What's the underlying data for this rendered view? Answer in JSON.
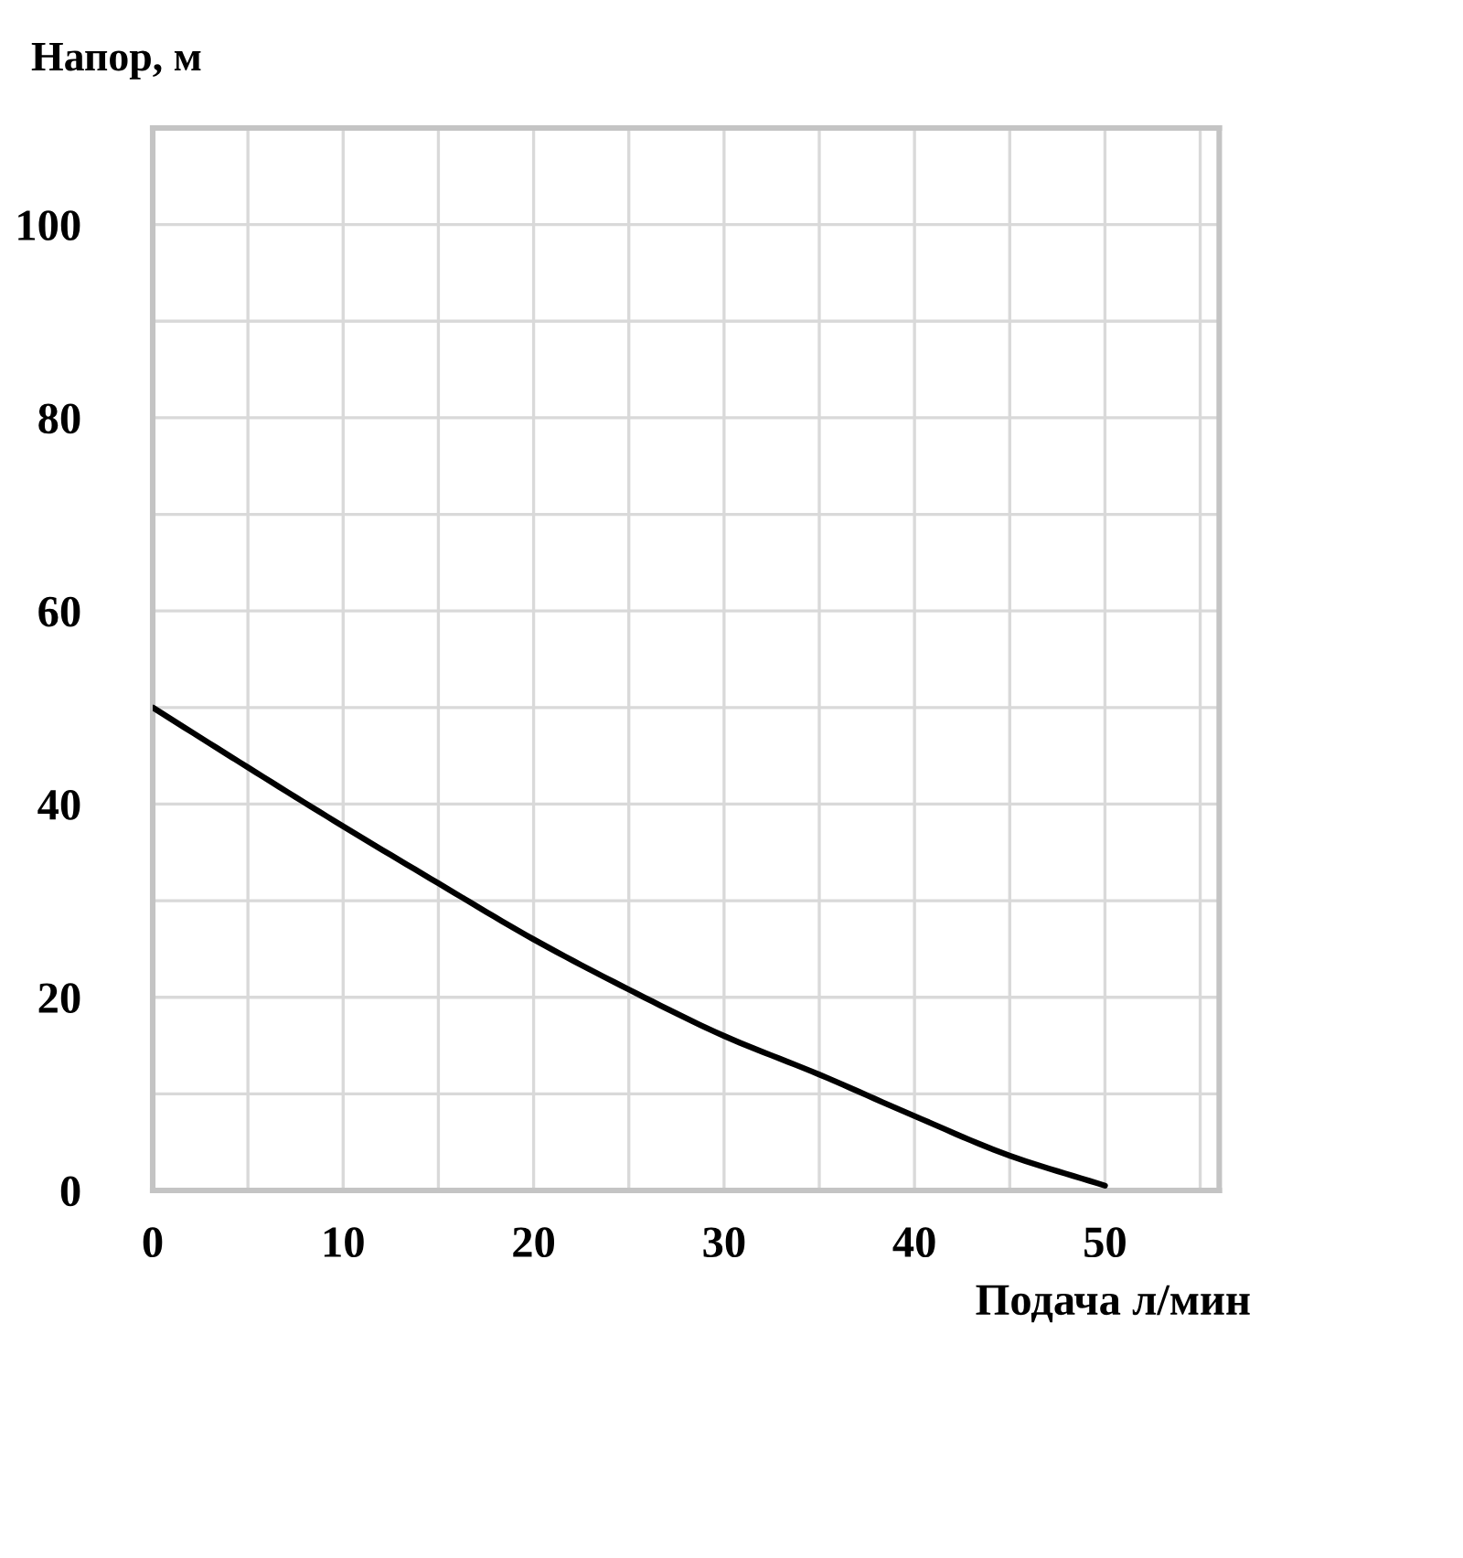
{
  "chart_data": {
    "type": "line",
    "xlabel": "Подача л/мин",
    "ylabel": "Напор, м",
    "x": [
      0,
      5,
      10,
      15,
      20,
      25,
      30,
      35,
      40,
      45,
      50
    ],
    "series": [
      {
        "color": "#000000",
        "values": [
          50,
          43.8,
          37.7,
          31.8,
          26,
          20.8,
          16,
          12,
          7.7,
          3.6,
          0.5
        ]
      }
    ],
    "xlim": [
      0,
      56
    ],
    "ylim": [
      0,
      110
    ],
    "xticks": [
      0,
      {
        "value": 5,
        "label": null
      },
      10,
      {
        "value": 15,
        "label": null
      },
      20,
      {
        "value": 25,
        "label": null
      },
      30,
      {
        "value": 35,
        "label": null
      },
      40,
      {
        "value": 45,
        "label": null
      },
      50,
      {
        "value": 55,
        "label": null
      }
    ],
    "yticks": [
      0,
      {
        "value": 10,
        "label": null
      },
      20,
      {
        "value": 30,
        "label": null
      },
      40,
      {
        "value": 50,
        "label": null
      },
      60,
      {
        "value": 70,
        "label": null
      },
      80,
      {
        "value": 90,
        "label": null
      },
      100
    ],
    "grid": true,
    "marker": "none",
    "line_style": "solid"
  }
}
